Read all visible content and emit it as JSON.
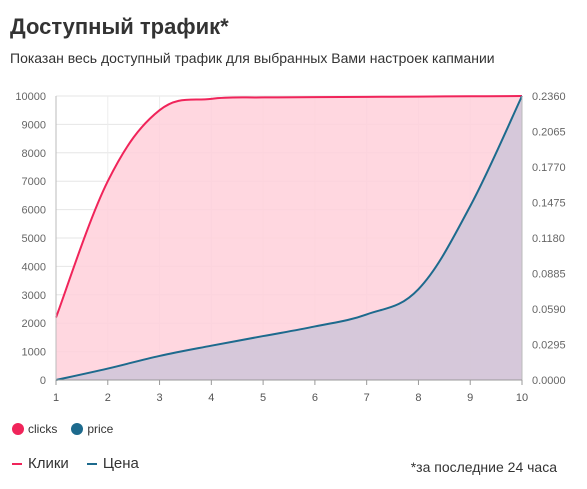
{
  "header": {
    "title": "Доступный трафик*",
    "subtitle": "Показан весь доступный трафик для выбранных Вами настроек капмании"
  },
  "legend": {
    "items": [
      {
        "label": "clicks",
        "color": "#f0245a"
      },
      {
        "label": "price",
        "color": "#1d6a8d"
      }
    ]
  },
  "key": {
    "items": [
      {
        "label": "Клики",
        "color": "#f0245a"
      },
      {
        "label": "Цена",
        "color": "#1d6a8d"
      }
    ]
  },
  "footnote": "*за последние 24 часа",
  "chart_data": {
    "type": "area",
    "x": [
      1,
      2,
      3,
      4,
      5,
      6,
      7,
      8,
      9,
      10
    ],
    "x_ticks": [
      "1",
      "2",
      "3",
      "4",
      "5",
      "6",
      "7",
      "8",
      "9",
      "10"
    ],
    "y_left_ticks": [
      "0",
      "1000",
      "2000",
      "3000",
      "4000",
      "5000",
      "6000",
      "7000",
      "8000",
      "9000",
      "10000"
    ],
    "y_right_ticks": [
      "0.0000",
      "0.0295",
      "0.0590",
      "0.0885",
      "0.1180",
      "0.1475",
      "0.1770",
      "0.2065",
      "0.2360"
    ],
    "ylim_left": [
      0,
      10000
    ],
    "ylim_right": [
      0,
      0.236
    ],
    "series": [
      {
        "name": "clicks",
        "axis": "left",
        "color": "#f0245a",
        "fill": "#ffd0db",
        "values": [
          2200,
          7000,
          9500,
          9900,
          9950,
          9960,
          9970,
          9980,
          9990,
          10000
        ]
      },
      {
        "name": "price",
        "axis": "right",
        "color": "#1d6a8d",
        "fill": "#cfc5d8",
        "values": [
          0.0,
          0.0095,
          0.02,
          0.0285,
          0.0365,
          0.0445,
          0.0545,
          0.0755,
          0.1445,
          0.236
        ]
      }
    ],
    "grid": true
  }
}
